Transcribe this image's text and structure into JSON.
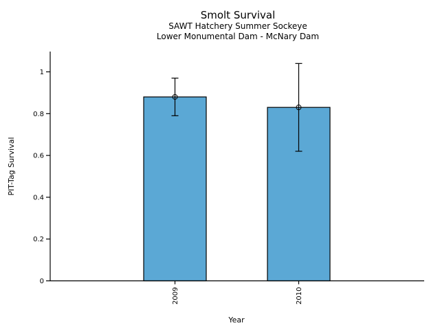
{
  "chart_data": {
    "type": "bar",
    "title": "Smolt Survival",
    "subtitle_line1": "SAWT Hatchery Summer Sockeye",
    "subtitle_line2": "Lower Monumental Dam - McNary Dam",
    "xlabel": "Year",
    "ylabel": "PIT-Tag Survival",
    "categories": [
      "2009",
      "2010"
    ],
    "values": [
      0.88,
      0.83
    ],
    "error_bars": [
      {
        "low": 0.79,
        "high": 0.97
      },
      {
        "low": 0.62,
        "high": 1.04
      }
    ],
    "y_ticks": [
      "0",
      "0.2",
      "0.4",
      "0.6",
      "0.8",
      "1"
    ],
    "ylim": [
      0,
      1.1
    ],
    "grid": false,
    "legend": "none",
    "marker": "open-circle",
    "x_tick_label_rotation_deg": 90,
    "bar_color": "#5BA8D5",
    "bar_edge_color": "#000000",
    "error_bar_color": "#000000",
    "marker_edge_color": "#000000"
  }
}
